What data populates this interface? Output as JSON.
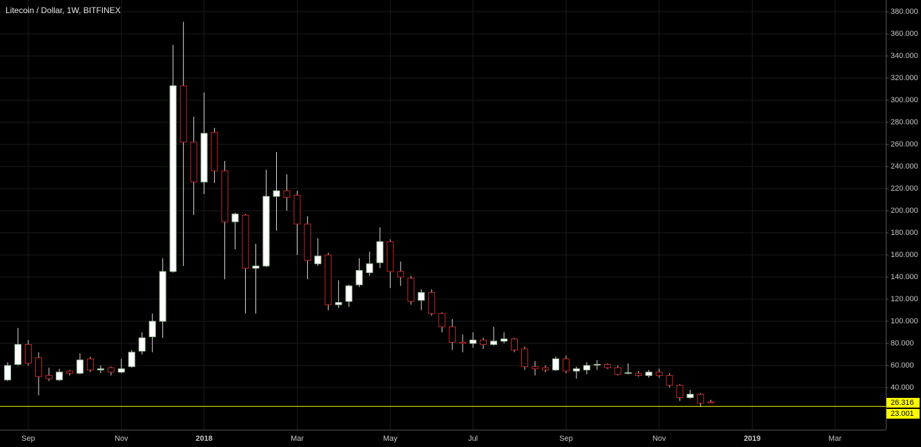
{
  "chart_data": {
    "type": "candlestick",
    "title": "Litecoin / Dollar, 1W, BITFINEX",
    "categories": [
      null,
      null,
      "Sep",
      null,
      null,
      null,
      null,
      null,
      null,
      null,
      null,
      "Nov",
      null,
      null,
      null,
      null,
      null,
      null,
      null,
      "2018",
      null,
      null,
      null,
      null,
      null,
      null,
      null,
      null,
      "Mar",
      null,
      null,
      null,
      null,
      null,
      null,
      null,
      null,
      "May",
      null,
      null,
      null,
      null,
      null,
      null,
      null,
      "Jul",
      null,
      null,
      null,
      null,
      null,
      null,
      null,
      null,
      "Sep",
      null,
      null,
      null,
      null,
      null,
      null,
      null,
      null,
      "Nov",
      null,
      null,
      null,
      null,
      null,
      null,
      null,
      null,
      "2019",
      null,
      null,
      null,
      null,
      null,
      null,
      null,
      "Mar"
    ],
    "open": [
      47,
      61,
      79,
      67,
      51,
      47,
      55,
      53,
      66,
      56,
      58,
      54,
      59,
      73,
      86,
      100,
      145,
      313,
      262,
      226,
      271,
      236,
      190,
      196,
      148,
      150,
      213,
      218,
      214,
      188,
      152,
      160,
      115,
      118,
      133,
      144,
      153,
      172,
      145,
      139,
      119,
      126,
      107,
      95,
      81,
      80,
      83,
      79,
      82,
      84,
      75,
      59,
      58,
      56,
      66,
      55,
      56,
      61,
      61,
      58,
      53,
      53,
      51,
      54,
      51,
      42,
      31,
      34,
      27,
      null,
      null,
      null,
      null,
      null,
      null,
      null,
      null,
      null,
      null,
      null,
      null
    ],
    "high": [
      63,
      94,
      83,
      72,
      58,
      57,
      56,
      71,
      68,
      60,
      59,
      66,
      74,
      90,
      107,
      157,
      350,
      371,
      285,
      307,
      275,
      245,
      198,
      197,
      170,
      237,
      253,
      233,
      218,
      195,
      175,
      162,
      137,
      133,
      157,
      163,
      185,
      174,
      154,
      141,
      129,
      129,
      108,
      102,
      88,
      90,
      85,
      95,
      90,
      85,
      77,
      64,
      60,
      68,
      69,
      59,
      63,
      65,
      62,
      60,
      62,
      55,
      56,
      57,
      53,
      43,
      38,
      35,
      29,
      null,
      null,
      null,
      null,
      null,
      null,
      null,
      null,
      null,
      null,
      null,
      null
    ],
    "low": [
      46,
      60,
      60,
      33,
      46,
      46,
      51,
      52,
      54,
      53,
      51,
      53,
      58,
      70,
      72,
      85,
      144,
      150,
      196,
      215,
      225,
      138,
      165,
      107,
      107,
      149,
      182,
      200,
      160,
      138,
      150,
      110,
      112,
      113,
      131,
      141,
      148,
      130,
      132,
      115,
      110,
      105,
      90,
      74,
      72,
      76,
      75,
      78,
      80,
      72,
      56,
      51,
      54,
      55,
      53,
      48,
      52,
      56,
      57,
      51,
      52,
      50,
      49,
      49,
      40,
      28,
      30,
      23,
      26,
      null,
      null,
      null,
      null,
      null,
      null,
      null,
      null,
      null,
      null,
      null,
      null
    ],
    "close": [
      60,
      79,
      62,
      50,
      48,
      54,
      53,
      65,
      56,
      57,
      54,
      57,
      72,
      85,
      100,
      145,
      313,
      262,
      226,
      270,
      236,
      190,
      197,
      148,
      150,
      213,
      218,
      212,
      188,
      155,
      159,
      115,
      117,
      132,
      146,
      152,
      172,
      145,
      140,
      118,
      126,
      107,
      95,
      81,
      80,
      83,
      79,
      82,
      84,
      74,
      59,
      57,
      56,
      66,
      55,
      57,
      60,
      61,
      58,
      52,
      53.5,
      51,
      54,
      51,
      42,
      31,
      34,
      26,
      26.316,
      null,
      null,
      null,
      null,
      null,
      null,
      null,
      null,
      null,
      null,
      null,
      null
    ],
    "up_color": "#ffffff",
    "down_color": "#c62828",
    "wick_color": "#e0e0e0",
    "grid": true,
    "last_price": 26.316,
    "horizontal_line": 23.001,
    "marker_color": "#ffff00",
    "ylim": [
      1.9,
      390.6
    ],
    "yticks": [
      {
        "value": 40,
        "label": "40.000"
      },
      {
        "value": 60,
        "label": "60.000"
      },
      {
        "value": 80,
        "label": "80.000"
      },
      {
        "value": 100,
        "label": "100.000"
      },
      {
        "value": 120,
        "label": "120.000"
      },
      {
        "value": 140,
        "label": "140.000"
      },
      {
        "value": 160,
        "label": "160.000"
      },
      {
        "value": 180,
        "label": "180.000"
      },
      {
        "value": 200,
        "label": "200.000"
      },
      {
        "value": 220,
        "label": "220.000"
      },
      {
        "value": 240,
        "label": "240.000"
      },
      {
        "value": 260,
        "label": "260.000"
      },
      {
        "value": 280,
        "label": "280.000"
      },
      {
        "value": 300,
        "label": "300.000"
      },
      {
        "value": 320,
        "label": "320.000"
      },
      {
        "value": 340,
        "label": "340.000"
      },
      {
        "value": 360,
        "label": "360.000"
      },
      {
        "value": 380,
        "label": "380.000"
      }
    ]
  }
}
